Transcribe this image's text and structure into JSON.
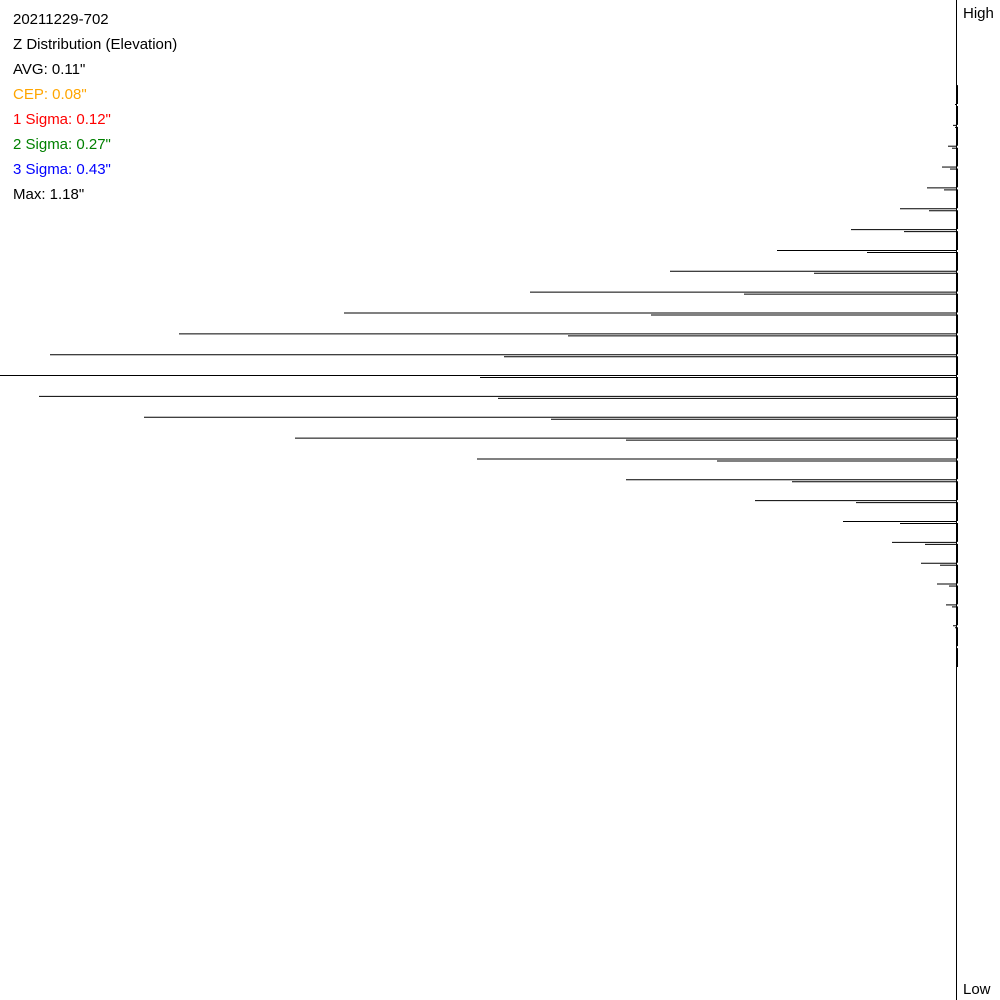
{
  "chart_data": {
    "type": "barh",
    "title": "20211229-702",
    "subtitle": "Z Distribution (Elevation)",
    "annotations": [
      {
        "text": "AVG: 0.11\"",
        "color": "#000000"
      },
      {
        "text": "CEP: 0.08\"",
        "color": "#ffa500"
      },
      {
        "text": "1 Sigma: 0.12\"",
        "color": "#ff0000"
      },
      {
        "text": "2 Sigma: 0.27\"",
        "color": "#008000"
      },
      {
        "text": "3 Sigma: 0.43\"",
        "color": "#0000ff"
      },
      {
        "text": "Max: 1.18\"",
        "color": "#000000"
      }
    ],
    "axis_top_label": "High",
    "axis_bottom_label": "Low",
    "categories": [
      null,
      null,
      null,
      null,
      null,
      null,
      null,
      null,
      null,
      null,
      null,
      null,
      null,
      null,
      null,
      null,
      null,
      null,
      null,
      null,
      null,
      null,
      null,
      null,
      null,
      null,
      null,
      null
    ],
    "series": [
      {
        "color": "#000000",
        "values": [
          1,
          3,
          8,
          14,
          29,
          56,
          105,
          179,
          286,
          426,
          612,
          777,
          906,
          956,
          917,
          812,
          661,
          479,
          330,
          201,
          113,
          64,
          35,
          19,
          10,
          3,
          0,
          0
        ]
      },
      {
        "color": "#000000",
        "values": [
          0,
          1,
          4,
          6,
          12,
          27,
          52,
          89,
          142,
          212,
          305,
          388,
          452,
          476,
          458,
          405,
          330,
          239,
          164,
          100,
          56,
          31,
          16,
          7,
          4,
          1,
          0,
          0
        ]
      }
    ],
    "xlim": [
      0,
      956
    ]
  }
}
